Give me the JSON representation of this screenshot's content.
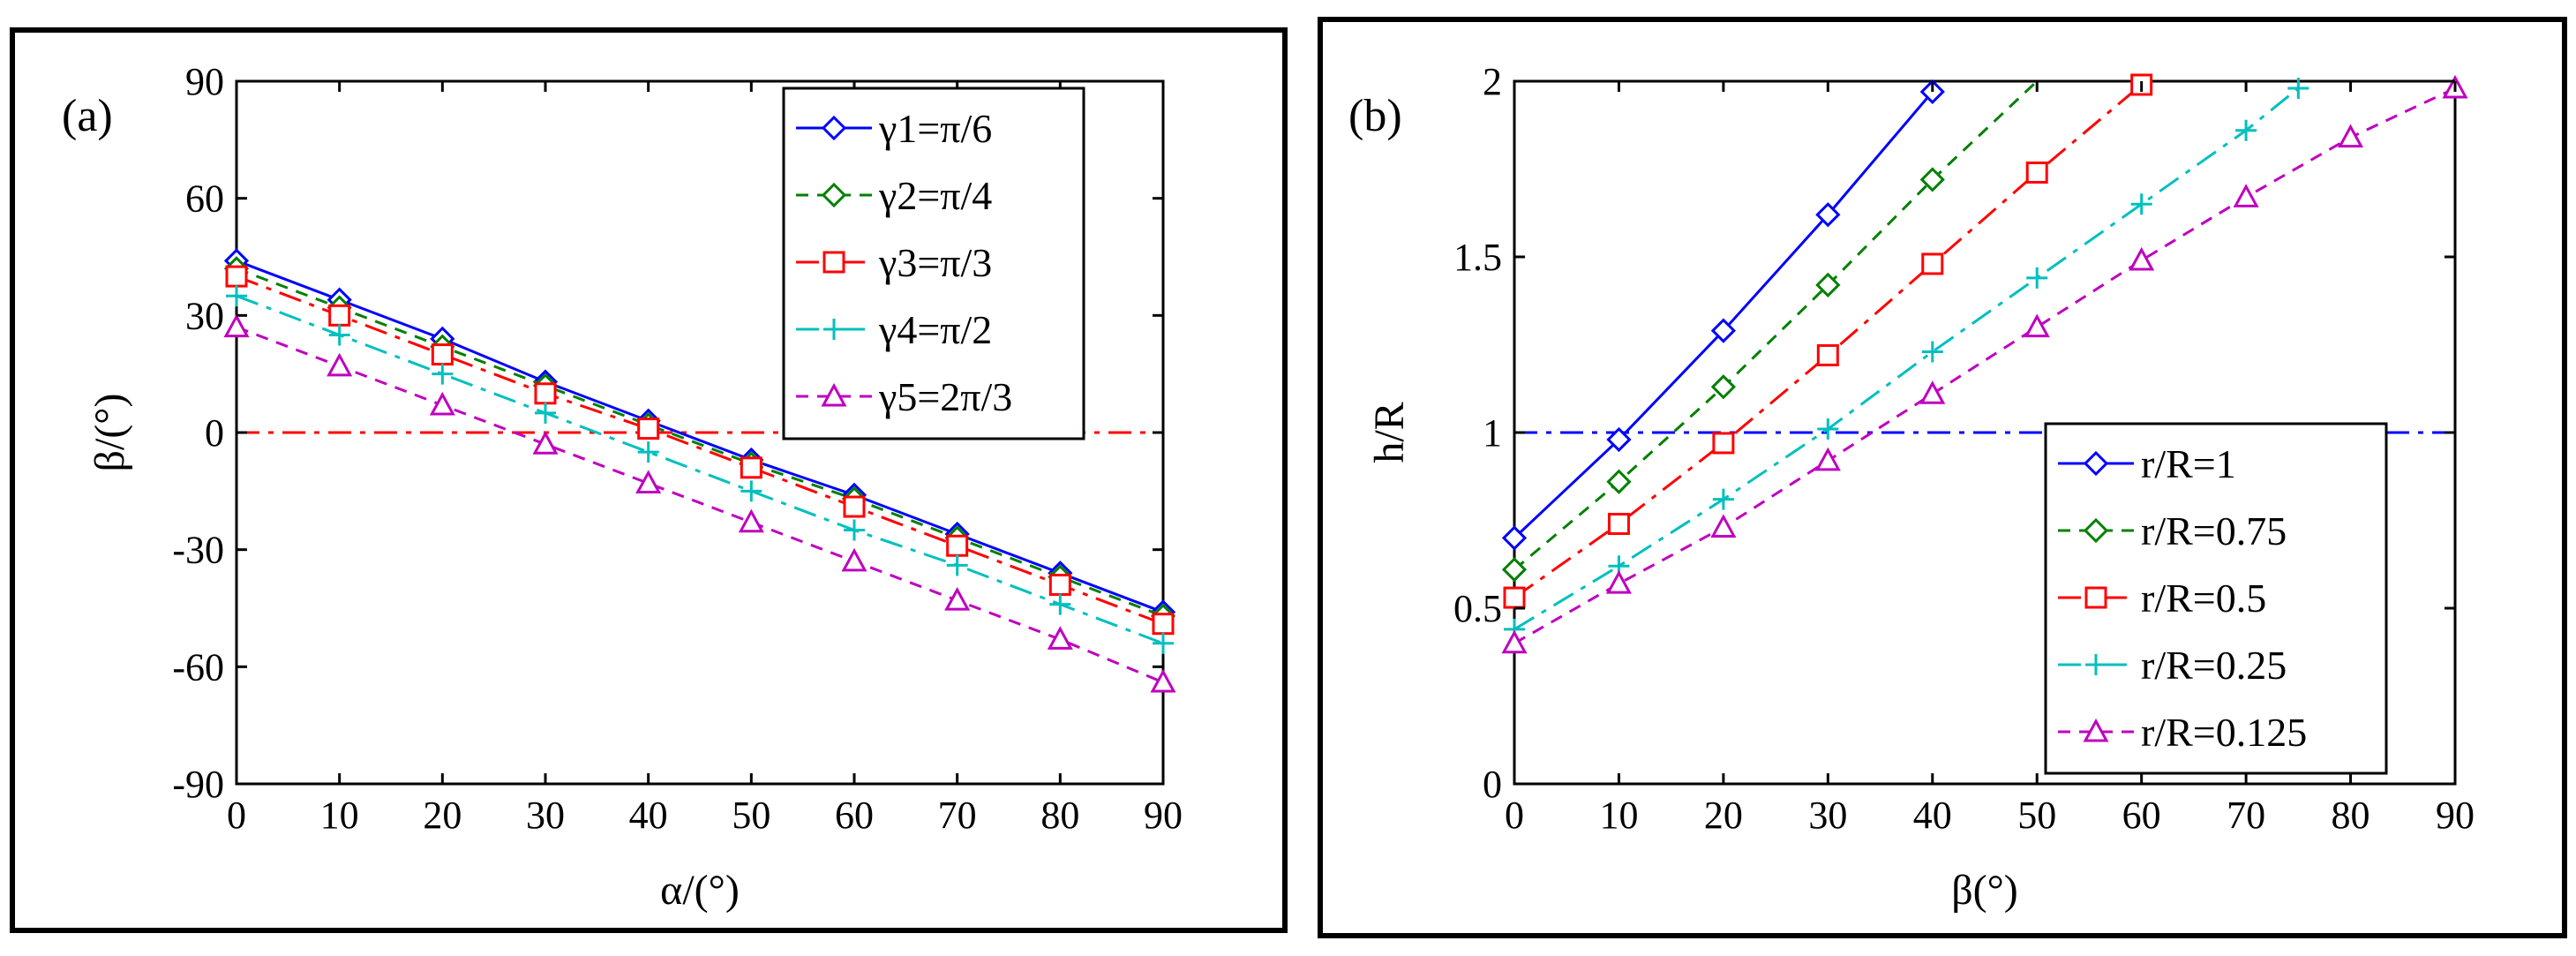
{
  "chart_data": [
    {
      "type": "line",
      "panel_label": "(a)",
      "xlabel": "α/(°)",
      "ylabel": "β/(°)",
      "xlim": [
        0,
        90
      ],
      "ylim": [
        -90,
        90
      ],
      "xticks": [
        0,
        10,
        20,
        30,
        40,
        50,
        60,
        70,
        80,
        90
      ],
      "xtick_labels": [
        "0",
        "10",
        "20",
        "30",
        "40",
        "50",
        "60",
        "70",
        "80",
        "90"
      ],
      "yticks": [
        -90,
        -60,
        -30,
        0,
        30,
        60,
        90
      ],
      "ytick_labels": [
        "-90",
        "-60",
        "-30",
        "0",
        "30",
        "60",
        "90"
      ],
      "grid": false,
      "legend_position": "top-right",
      "x": [
        0,
        10,
        20,
        30,
        40,
        50,
        60,
        70,
        80,
        90
      ],
      "series": [
        {
          "name": "γ1=π/6",
          "color": "#0000ff",
          "linestyle": "solid",
          "marker": "diamond-open",
          "values": [
            44,
            34,
            24,
            13,
            3,
            -7,
            -16,
            -26,
            -36,
            -46
          ]
        },
        {
          "name": "γ2=π/4",
          "color": "#008000",
          "linestyle": "dashed",
          "marker": "diamond-open",
          "values": [
            42,
            32,
            22,
            12,
            2,
            -8,
            -17,
            -27,
            -37,
            -47
          ]
        },
        {
          "name": "γ3=π/3",
          "color": "#ff0000",
          "linestyle": "dashdot",
          "marker": "square-open",
          "values": [
            40,
            30,
            20,
            10,
            1,
            -9,
            -19,
            -29,
            -39,
            -49
          ]
        },
        {
          "name": "γ4=π/2",
          "color": "#00bfbf",
          "linestyle": "dashdot",
          "marker": "plus",
          "values": [
            35,
            25,
            15,
            5,
            -5,
            -15,
            -25,
            -34,
            -44,
            -54
          ]
        },
        {
          "name": "γ5=2π/3",
          "color": "#bf00bf",
          "linestyle": "dashed",
          "marker": "triangle-open",
          "values": [
            27,
            17,
            7,
            -3,
            -13,
            -23,
            -33,
            -43,
            -53,
            -64
          ]
        }
      ],
      "reference_line": {
        "y": 0,
        "color": "#ff0000",
        "linestyle": "dashdot"
      }
    },
    {
      "type": "line",
      "panel_label": "(b)",
      "xlabel": "β(°)",
      "ylabel": "h/R",
      "xlim": [
        0,
        90
      ],
      "ylim": [
        0,
        2
      ],
      "xticks": [
        0,
        10,
        20,
        30,
        40,
        50,
        60,
        70,
        80,
        90
      ],
      "xtick_labels": [
        "0",
        "10",
        "20",
        "30",
        "40",
        "50",
        "60",
        "70",
        "80",
        "90"
      ],
      "yticks": [
        0,
        0.5,
        1,
        1.5,
        2
      ],
      "ytick_labels": [
        "0",
        "0.5",
        "1",
        "1.5",
        "2"
      ],
      "grid": false,
      "legend_position": "bottom-right",
      "series": [
        {
          "name": "r/R=1",
          "color": "#0000ff",
          "linestyle": "solid",
          "marker": "diamond-open",
          "x": [
            0,
            10,
            20,
            30,
            40
          ],
          "values": [
            0.7,
            0.98,
            1.29,
            1.62,
            1.97
          ]
        },
        {
          "name": "r/R=0.75",
          "color": "#008000",
          "linestyle": "dashed",
          "marker": "diamond-open",
          "x": [
            0,
            10,
            20,
            30,
            40,
            50
          ],
          "values": [
            0.61,
            0.86,
            1.13,
            1.42,
            1.72,
            2.05
          ]
        },
        {
          "name": "r/R=0.5",
          "color": "#ff0000",
          "linestyle": "dashdot",
          "marker": "square-open",
          "x": [
            0,
            10,
            20,
            30,
            40,
            50,
            60
          ],
          "values": [
            0.53,
            0.74,
            0.97,
            1.22,
            1.48,
            1.74,
            1.99
          ]
        },
        {
          "name": "r/R=0.25",
          "color": "#00bfbf",
          "linestyle": "dashdot",
          "marker": "plus",
          "x": [
            0,
            10,
            20,
            30,
            40,
            50,
            60,
            70,
            75
          ],
          "values": [
            0.44,
            0.62,
            0.81,
            1.01,
            1.23,
            1.44,
            1.65,
            1.86,
            1.98
          ]
        },
        {
          "name": "r/R=0.125",
          "color": "#bf00bf",
          "linestyle": "dashed",
          "marker": "triangle-open",
          "x": [
            0,
            10,
            20,
            30,
            40,
            50,
            60,
            70,
            80,
            90
          ],
          "values": [
            0.4,
            0.57,
            0.73,
            0.92,
            1.11,
            1.3,
            1.49,
            1.67,
            1.84,
            1.98
          ]
        }
      ],
      "reference_line": {
        "y": 1,
        "color": "#0000ff",
        "linestyle": "dashdot"
      }
    }
  ]
}
